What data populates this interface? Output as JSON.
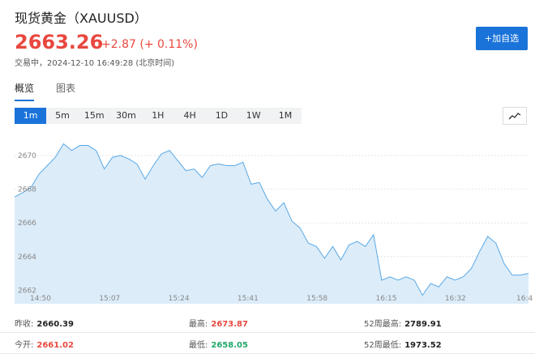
{
  "header": {
    "title": "现货黄金（XAUUSD）",
    "price": "2663.26",
    "change": "+2.87 (+ 0.11%)",
    "status": "交易中，2024-12-10 16:49:28 (北京时间)",
    "button": "+加自选"
  },
  "tabs": [
    "概览",
    "图表"
  ],
  "ranges": [
    "1m",
    "5m",
    "15m",
    "30m",
    "1H",
    "4H",
    "1D",
    "1W",
    "1M"
  ],
  "chart_data": {
    "type": "area",
    "color": "#5aa9e6",
    "fill": "#dcecf9",
    "grid": true,
    "ylim": [
      2661.2,
      2671.3
    ],
    "yticks": [
      2662,
      2664,
      2666,
      2668,
      2670
    ],
    "xticks": [
      "14:50",
      "15:07",
      "15:24",
      "15:41",
      "15:58",
      "16:15",
      "16:32",
      "16:4"
    ],
    "values": [
      2667.54,
      2667.8,
      2668.1,
      2668.9,
      2669.4,
      2669.9,
      2670.7,
      2670.3,
      2670.6,
      2670.6,
      2670.3,
      2669.2,
      2669.9,
      2670.0,
      2669.8,
      2669.5,
      2668.6,
      2669.4,
      2670.1,
      2670.3,
      2669.7,
      2669.1,
      2669.2,
      2668.7,
      2669.4,
      2669.5,
      2669.4,
      2669.4,
      2669.6,
      2668.3,
      2668.4,
      2667.4,
      2666.7,
      2667.2,
      2666.1,
      2665.7,
      2664.8,
      2664.6,
      2663.9,
      2664.6,
      2663.8,
      2664.7,
      2664.9,
      2664.6,
      2665.3,
      2662.6,
      2662.8,
      2662.6,
      2662.8,
      2662.6,
      2661.7,
      2662.4,
      2662.2,
      2662.8,
      2662.6,
      2662.8,
      2663.3,
      2664.3,
      2665.2,
      2664.8,
      2663.6,
      2662.9,
      2662.9,
      2663.0
    ]
  },
  "stats": {
    "rows": [
      [
        {
          "label": "昨收:",
          "value": "2660.39",
          "color": "#222"
        },
        {
          "label": "最高:",
          "value": "2673.87",
          "color": "#e8483f"
        },
        {
          "label": "52周最高:",
          "value": "2789.91",
          "color": "#222"
        }
      ],
      [
        {
          "label": "今开:",
          "value": "2661.02",
          "color": "#e8483f"
        },
        {
          "label": "最低:",
          "value": "2658.05",
          "color": "#20a86a"
        },
        {
          "label": "52周最低:",
          "value": "1973.52",
          "color": "#222"
        }
      ]
    ]
  }
}
